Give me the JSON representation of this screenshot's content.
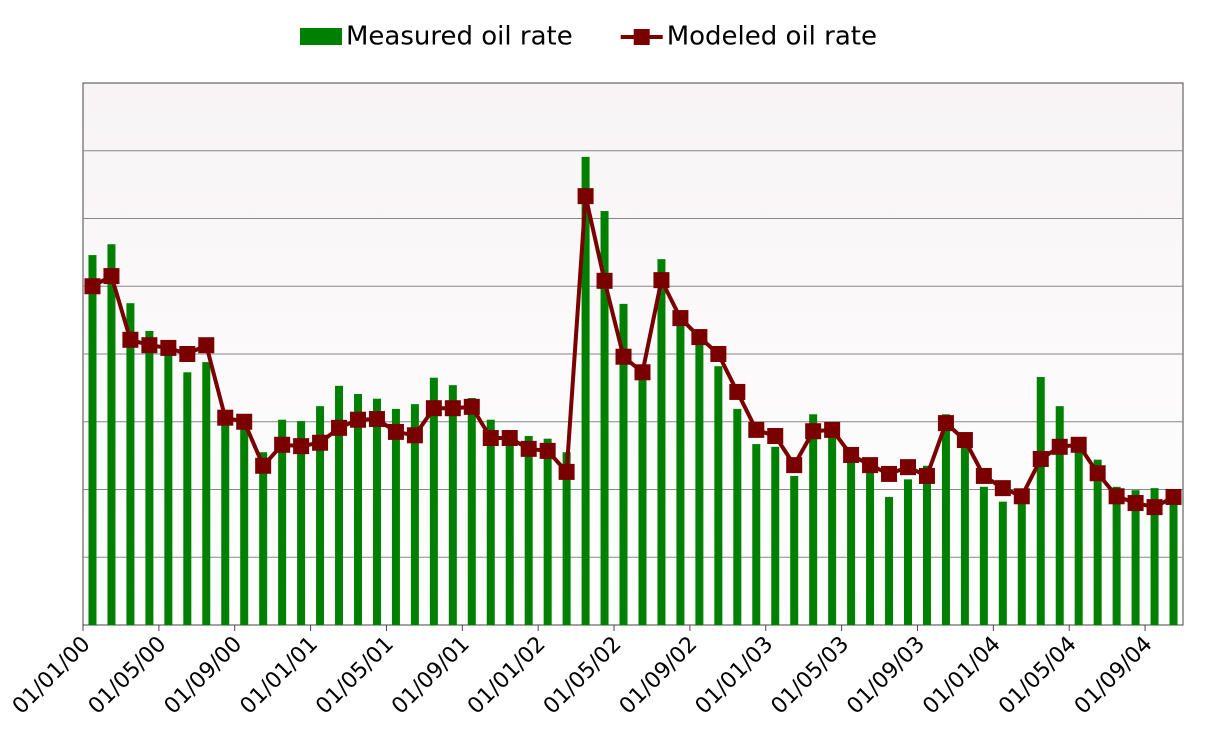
{
  "chart_data": {
    "type": "combo",
    "xlim": [
      "2000-01",
      "2004-11"
    ],
    "xticks": [
      {
        "value": "2000-01",
        "label": "01/01/00"
      },
      {
        "value": "2000-05",
        "label": "01/05/00"
      },
      {
        "value": "2000-09",
        "label": "01/09/00"
      },
      {
        "value": "2001-01",
        "label": "01/01/01"
      },
      {
        "value": "2001-05",
        "label": "01/05/01"
      },
      {
        "value": "2001-09",
        "label": "01/09/01"
      },
      {
        "value": "2002-01",
        "label": "01/01/02"
      },
      {
        "value": "2002-05",
        "label": "01/05/02"
      },
      {
        "value": "2002-09",
        "label": "01/09/02"
      },
      {
        "value": "2003-01",
        "label": "01/01/03"
      },
      {
        "value": "2003-05",
        "label": "01/05/03"
      },
      {
        "value": "2003-09",
        "label": "01/09/03"
      },
      {
        "value": "2004-01",
        "label": "01/01/04"
      },
      {
        "value": "2004-05",
        "label": "01/05/04"
      },
      {
        "value": "2004-09",
        "label": "01/09/04"
      }
    ],
    "ylim": [
      0,
      8
    ],
    "grid_lines": [
      1,
      2,
      3,
      4,
      5,
      6,
      7
    ],
    "grid": true,
    "legend": "top",
    "x": [
      "2000-01",
      "2000-02",
      "2000-03",
      "2000-04",
      "2000-05",
      "2000-06",
      "2000-07",
      "2000-08",
      "2000-09",
      "2000-10",
      "2000-11",
      "2000-12",
      "2001-01",
      "2001-02",
      "2001-03",
      "2001-04",
      "2001-05",
      "2001-06",
      "2001-07",
      "2001-08",
      "2001-09",
      "2001-10",
      "2001-11",
      "2001-12",
      "2002-01",
      "2002-02",
      "2002-03",
      "2002-04",
      "2002-05",
      "2002-06",
      "2002-07",
      "2002-08",
      "2002-09",
      "2002-10",
      "2002-11",
      "2002-12",
      "2003-01",
      "2003-02",
      "2003-03",
      "2003-04",
      "2003-05",
      "2003-06",
      "2003-07",
      "2003-08",
      "2003-09",
      "2003-10",
      "2003-11",
      "2003-12",
      "2004-01",
      "2004-02",
      "2004-03",
      "2004-04",
      "2004-05",
      "2004-06",
      "2004-07",
      "2004-08",
      "2004-09",
      "2004-10"
    ],
    "series": [
      {
        "name": "Measured oil rate",
        "type": "bar",
        "color": "#008000",
        "values": [
          5.46,
          5.62,
          4.75,
          4.34,
          4.13,
          3.73,
          3.88,
          3.13,
          2.95,
          2.55,
          3.03,
          3.01,
          3.23,
          3.53,
          3.41,
          3.34,
          3.19,
          3.26,
          3.65,
          3.54,
          3.35,
          3.03,
          2.8,
          2.79,
          2.75,
          2.55,
          6.91,
          6.11,
          4.74,
          3.76,
          5.4,
          4.5,
          4.21,
          3.82,
          3.19,
          2.67,
          2.63,
          2.2,
          3.11,
          2.85,
          2.49,
          2.32,
          1.89,
          2.15,
          2.35,
          3.11,
          2.69,
          2.04,
          1.82,
          1.89,
          3.66,
          3.23,
          2.77,
          2.44,
          2.04,
          1.99,
          2.02,
          1.92
        ]
      },
      {
        "name": "Modeled oil rate",
        "type": "line",
        "color": "#7a0000",
        "values": [
          5.0,
          5.15,
          4.21,
          4.13,
          4.09,
          4.0,
          4.13,
          3.06,
          3.0,
          2.35,
          2.66,
          2.64,
          2.69,
          2.91,
          3.03,
          3.04,
          2.85,
          2.8,
          3.2,
          3.2,
          3.22,
          2.76,
          2.76,
          2.6,
          2.57,
          2.26,
          6.33,
          5.08,
          3.96,
          3.73,
          5.09,
          4.53,
          4.25,
          4.0,
          3.44,
          2.88,
          2.79,
          2.36,
          2.86,
          2.88,
          2.51,
          2.36,
          2.23,
          2.33,
          2.2,
          2.98,
          2.73,
          2.2,
          2.02,
          1.9,
          2.45,
          2.63,
          2.66,
          2.24,
          1.9,
          1.8,
          1.74,
          1.89
        ]
      }
    ]
  }
}
